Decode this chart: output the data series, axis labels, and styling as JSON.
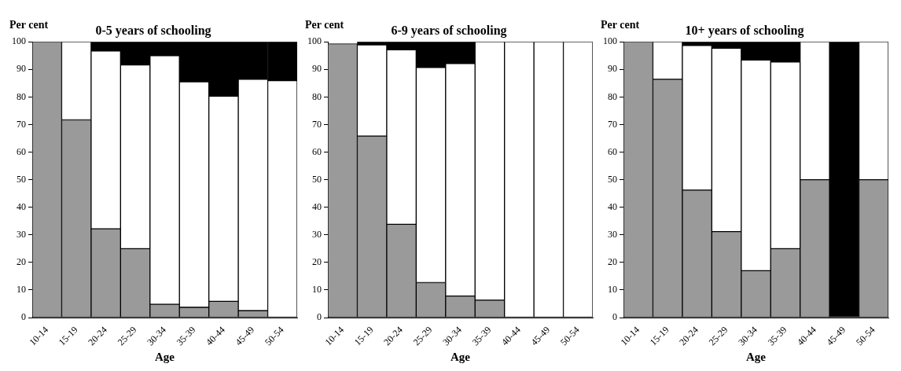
{
  "chart_data": [
    {
      "type": "bar",
      "title": "0-5 years of schooling",
      "ylabel": "Per cent",
      "xlabel": "Age",
      "categories": [
        "10-14",
        "15-19",
        "20-24",
        "25-29",
        "30-34",
        "35-39",
        "40-44",
        "45-49",
        "50-54"
      ],
      "stacked": true,
      "grid": false,
      "legend": false,
      "ylim": [
        0,
        100
      ],
      "yticks": [
        0,
        10,
        20,
        30,
        40,
        50,
        60,
        70,
        80,
        90,
        100
      ],
      "series": [
        {
          "color": "#9a9a9a",
          "values": [
            100,
            71.7,
            32.2,
            25,
            4.8,
            3.7,
            5.9,
            2.5,
            0
          ]
        },
        {
          "color": "#ffffff",
          "values": [
            0,
            28.3,
            64.5,
            66.6,
            90.2,
            81.8,
            74.4,
            83.9,
            85.9
          ]
        },
        {
          "color": "#000000",
          "values": [
            0,
            0,
            3.3,
            8.4,
            5,
            14.5,
            19.7,
            13.6,
            14.1
          ]
        }
      ]
    },
    {
      "type": "bar",
      "title": "6-9 years of schooling",
      "ylabel": "Per cent",
      "xlabel": "Age",
      "categories": [
        "10-14",
        "15-19",
        "20-24",
        "25-29",
        "30-34",
        "35-39",
        "40-44",
        "45-49",
        "50-54"
      ],
      "stacked": true,
      "grid": false,
      "legend": false,
      "ylim": [
        0,
        100
      ],
      "yticks": [
        0,
        10,
        20,
        30,
        40,
        50,
        60,
        70,
        80,
        90,
        100
      ],
      "series": [
        {
          "color": "#9a9a9a",
          "values": [
            99.3,
            65.8,
            33.8,
            12.7,
            7.8,
            6.3,
            0,
            0,
            0
          ]
        },
        {
          "color": "#ffffff",
          "values": [
            0,
            33.1,
            63.3,
            78,
            84.3,
            93.7,
            100,
            100,
            100
          ]
        },
        {
          "color": "#000000",
          "values": [
            0,
            1.1,
            2.9,
            9.3,
            7.9,
            0,
            0,
            0,
            0
          ]
        }
      ]
    },
    {
      "type": "bar",
      "title": "10+ years of schooling",
      "ylabel": "Per cent",
      "xlabel": "Age",
      "categories": [
        "10-14",
        "15-19",
        "20-24",
        "25-29",
        "30-34",
        "35-39",
        "40-44",
        "45-49",
        "50-54"
      ],
      "stacked": true,
      "grid": false,
      "legend": false,
      "ylim": [
        0,
        100
      ],
      "yticks": [
        0,
        10,
        20,
        30,
        40,
        50,
        60,
        70,
        80,
        90,
        100
      ],
      "series": [
        {
          "color": "#9a9a9a",
          "values": [
            100,
            86.4,
            46.2,
            31.2,
            17,
            25,
            50,
            0,
            50
          ]
        },
        {
          "color": "#ffffff",
          "values": [
            0,
            13.6,
            52.5,
            66.5,
            76.4,
            67.7,
            50,
            0,
            50
          ]
        },
        {
          "color": "#000000",
          "values": [
            0,
            0,
            1.3,
            2.3,
            6.6,
            7.3,
            0,
            100,
            0
          ]
        }
      ]
    }
  ]
}
